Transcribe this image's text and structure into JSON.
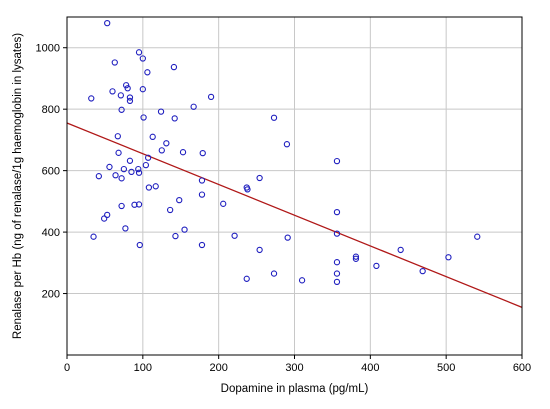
{
  "chart_data": {
    "type": "scatter",
    "xlabel": "Dopamine in plasma (pg/mL)",
    "ylabel": "Renalase  per Hb (ng of renalase/1g haemoglobin in lysates)",
    "xlim": [
      0,
      600
    ],
    "ylim": [
      0,
      1100
    ],
    "x_ticks": [
      0,
      100,
      200,
      300,
      400,
      500,
      600
    ],
    "y_ticks": [
      200,
      400,
      600,
      800,
      1000
    ],
    "x_tick_labels": [
      "0",
      "100",
      "200",
      "300",
      "400",
      "500",
      "600"
    ],
    "y_tick_labels": [
      "200",
      "400",
      "600",
      "800",
      "1000"
    ],
    "grid": true,
    "colors": {
      "points": "#1f1fbf",
      "trend": "#b01818",
      "grid": "#c8c8c8"
    },
    "trend_line": {
      "x": [
        0,
        600
      ],
      "y": [
        755,
        155
      ]
    },
    "points": [
      {
        "x": 32,
        "y": 835
      },
      {
        "x": 35,
        "y": 385
      },
      {
        "x": 42,
        "y": 582
      },
      {
        "x": 49,
        "y": 444
      },
      {
        "x": 53,
        "y": 1080
      },
      {
        "x": 53,
        "y": 456
      },
      {
        "x": 56,
        "y": 612
      },
      {
        "x": 60,
        "y": 858
      },
      {
        "x": 63,
        "y": 952
      },
      {
        "x": 64,
        "y": 585
      },
      {
        "x": 67,
        "y": 712
      },
      {
        "x": 68,
        "y": 658
      },
      {
        "x": 71,
        "y": 845
      },
      {
        "x": 72,
        "y": 798
      },
      {
        "x": 72,
        "y": 575
      },
      {
        "x": 72,
        "y": 485
      },
      {
        "x": 75,
        "y": 605
      },
      {
        "x": 77,
        "y": 412
      },
      {
        "x": 78,
        "y": 878
      },
      {
        "x": 80,
        "y": 868
      },
      {
        "x": 83,
        "y": 838
      },
      {
        "x": 83,
        "y": 827
      },
      {
        "x": 83,
        "y": 632
      },
      {
        "x": 85,
        "y": 596
      },
      {
        "x": 89,
        "y": 489
      },
      {
        "x": 94,
        "y": 605
      },
      {
        "x": 95,
        "y": 985
      },
      {
        "x": 95,
        "y": 593
      },
      {
        "x": 95,
        "y": 490
      },
      {
        "x": 96,
        "y": 358
      },
      {
        "x": 100,
        "y": 965
      },
      {
        "x": 100,
        "y": 865
      },
      {
        "x": 101,
        "y": 773
      },
      {
        "x": 104,
        "y": 618
      },
      {
        "x": 106,
        "y": 920
      },
      {
        "x": 107,
        "y": 642
      },
      {
        "x": 108,
        "y": 545
      },
      {
        "x": 113,
        "y": 710
      },
      {
        "x": 117,
        "y": 549
      },
      {
        "x": 124,
        "y": 792
      },
      {
        "x": 125,
        "y": 666
      },
      {
        "x": 131,
        "y": 689
      },
      {
        "x": 136,
        "y": 472
      },
      {
        "x": 141,
        "y": 937
      },
      {
        "x": 142,
        "y": 770
      },
      {
        "x": 143,
        "y": 387
      },
      {
        "x": 148,
        "y": 504
      },
      {
        "x": 153,
        "y": 660
      },
      {
        "x": 155,
        "y": 408
      },
      {
        "x": 167,
        "y": 808
      },
      {
        "x": 178,
        "y": 568
      },
      {
        "x": 178,
        "y": 522
      },
      {
        "x": 178,
        "y": 358
      },
      {
        "x": 179,
        "y": 657
      },
      {
        "x": 190,
        "y": 840
      },
      {
        "x": 206,
        "y": 492
      },
      {
        "x": 221,
        "y": 388
      },
      {
        "x": 237,
        "y": 545
      },
      {
        "x": 238,
        "y": 539
      },
      {
        "x": 237,
        "y": 248
      },
      {
        "x": 254,
        "y": 576
      },
      {
        "x": 254,
        "y": 342
      },
      {
        "x": 273,
        "y": 772
      },
      {
        "x": 273,
        "y": 265
      },
      {
        "x": 290,
        "y": 686
      },
      {
        "x": 291,
        "y": 382
      },
      {
        "x": 310,
        "y": 243
      },
      {
        "x": 356,
        "y": 631
      },
      {
        "x": 356,
        "y": 465
      },
      {
        "x": 356,
        "y": 395
      },
      {
        "x": 356,
        "y": 302
      },
      {
        "x": 356,
        "y": 265
      },
      {
        "x": 356,
        "y": 238
      },
      {
        "x": 381,
        "y": 320
      },
      {
        "x": 381,
        "y": 313
      },
      {
        "x": 408,
        "y": 290
      },
      {
        "x": 440,
        "y": 342
      },
      {
        "x": 469,
        "y": 273
      },
      {
        "x": 503,
        "y": 318
      },
      {
        "x": 541,
        "y": 385
      }
    ]
  }
}
